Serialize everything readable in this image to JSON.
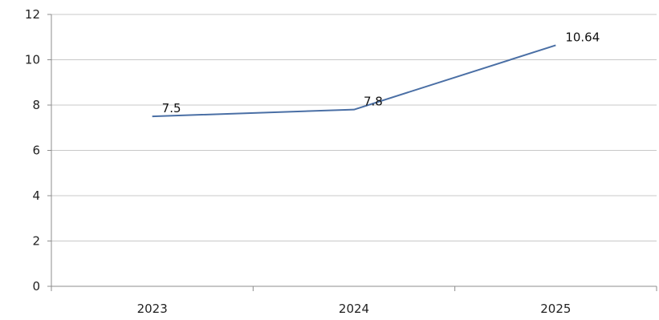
{
  "chart_data": {
    "type": "line",
    "categories": [
      "2023",
      "2024",
      "2025"
    ],
    "series": [
      {
        "values": [
          7.5,
          7.8,
          10.64
        ]
      }
    ],
    "data_labels": [
      "7.5",
      "7.8",
      "10.64"
    ],
    "y_ticks": [
      "0",
      "2",
      "4",
      "6",
      "8",
      "10",
      "12"
    ],
    "ylim": [
      0,
      12
    ],
    "grid": true,
    "line_color": "#4a6fa5",
    "grid_color": "#c8c8c8",
    "axis_color": "#8c8c8c"
  }
}
